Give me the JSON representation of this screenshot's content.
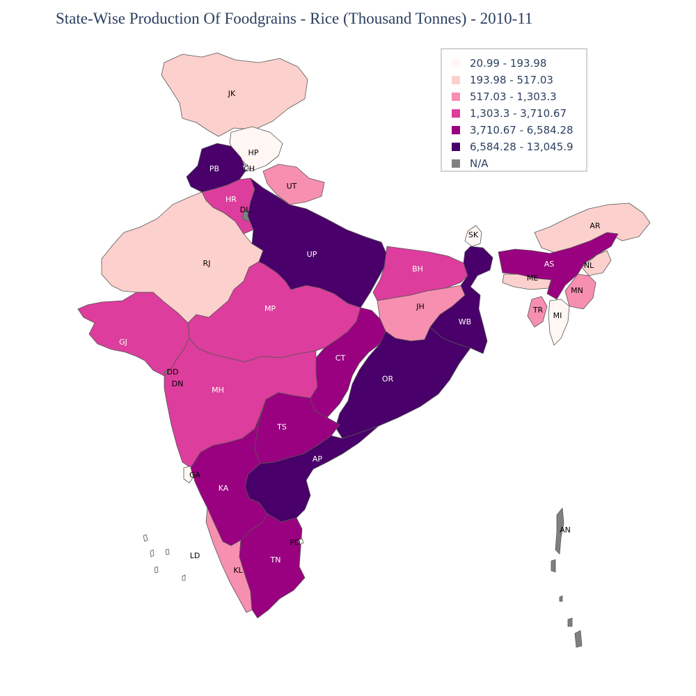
{
  "title": "State-Wise Production Of Foodgrains - Rice (Thousand Tonnes) - 2010-11",
  "legend": [
    {
      "label": "20.99 - 193.98",
      "color": "#fff7f3"
    },
    {
      "label": "193.98 - 517.03",
      "color": "#fcd0cd"
    },
    {
      "label": "517.03 - 1,303.3",
      "color": "#f78fb0"
    },
    {
      "label": "1,303.3 - 3,710.67",
      "color": "#dd3d9c"
    },
    {
      "label": "3,710.67 - 6,584.28",
      "color": "#9a0180"
    },
    {
      "label": "6,584.28 - 13,045.9",
      "color": "#49006a"
    },
    {
      "label": "N/A",
      "color": "#808080"
    }
  ],
  "states": [
    {
      "code": "JK",
      "class": 1
    },
    {
      "code": "HP",
      "class": 0
    },
    {
      "code": "PB",
      "class": 5
    },
    {
      "code": "CH",
      "class": 0
    },
    {
      "code": "UT",
      "class": 2
    },
    {
      "code": "HR",
      "class": 3
    },
    {
      "code": "DL",
      "class": 6
    },
    {
      "code": "RJ",
      "class": 1
    },
    {
      "code": "UP",
      "class": 5
    },
    {
      "code": "SK",
      "class": 0
    },
    {
      "code": "AR",
      "class": 1
    },
    {
      "code": "AS",
      "class": 4
    },
    {
      "code": "NL",
      "class": 1
    },
    {
      "code": "ME",
      "class": 1
    },
    {
      "code": "MN",
      "class": 2
    },
    {
      "code": "TR",
      "class": 2
    },
    {
      "code": "MI",
      "class": 0
    },
    {
      "code": "BH",
      "class": 3
    },
    {
      "code": "JH",
      "class": 2
    },
    {
      "code": "WB",
      "class": 5
    },
    {
      "code": "MP",
      "class": 3
    },
    {
      "code": "GJ",
      "class": 3
    },
    {
      "code": "DD",
      "class": 6
    },
    {
      "code": "DN",
      "class": 6
    },
    {
      "code": "CT",
      "class": 4
    },
    {
      "code": "OR",
      "class": 5
    },
    {
      "code": "MH",
      "class": 3
    },
    {
      "code": "TS",
      "class": 4
    },
    {
      "code": "AP",
      "class": 5
    },
    {
      "code": "GA",
      "class": 0
    },
    {
      "code": "KA",
      "class": 4
    },
    {
      "code": "KL",
      "class": 2
    },
    {
      "code": "TN",
      "class": 4
    },
    {
      "code": "PD",
      "class": 0
    },
    {
      "code": "LD",
      "class": 0
    },
    {
      "code": "AN",
      "class": 6
    }
  ]
}
